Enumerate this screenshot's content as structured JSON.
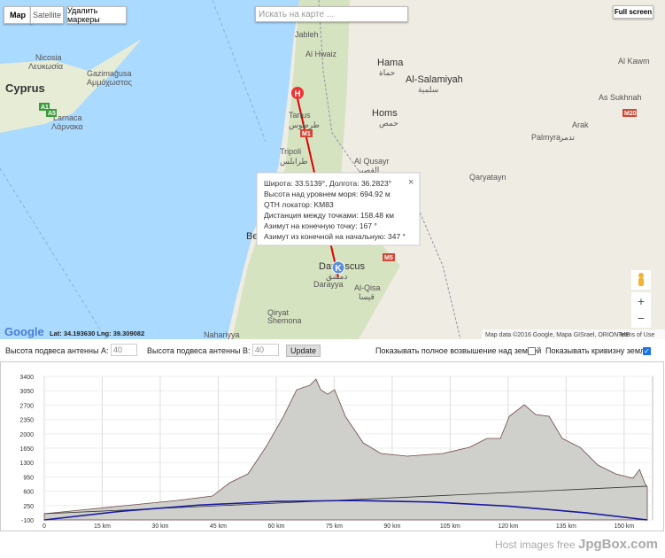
{
  "map": {
    "buttons": {
      "map": "Map",
      "satellite": "Satellite",
      "clear": "Удалить маркеры",
      "fullscreen": "Full screen",
      "zoom_in": "+",
      "zoom_out": "−"
    },
    "search_placeholder": "Искать на карте ...",
    "labels": [
      "Cyprus",
      "Nicosia",
      "Λευκωσία",
      "Gazimağusa",
      "Αμμόχωστος",
      "Larnaca",
      "Λάρνακα",
      "Jableh",
      "Al Hwaiz",
      "Tartus",
      "طرطوس",
      "Tripoli",
      "طرابلس",
      "Hama",
      "حماة",
      "Al-Salamiyah",
      "سلمية",
      "Homs",
      "حمص",
      "Al Qusayr",
      "القصير",
      "Palmyra",
      "تدمر",
      "Arak",
      "As Sukhnah",
      "Al Kawm",
      "Qaryatayn",
      "Damascus",
      "دمشق",
      "Darayya",
      "Al-Qisa",
      "قيسا",
      "Qiryat",
      "Shemona",
      "Nahariyya",
      "Be",
      "M1",
      "M5",
      "M20",
      "A1",
      "A5"
    ],
    "markers": [
      "H",
      "K"
    ],
    "popup": [
      "Широта: 33.5139°, Долгота: 36.2823°",
      "Высота над уровнем моря: 694.92 м",
      "QTH локатор: KM83",
      "Дистанция между точками: 158.48 км",
      "Азимут на конечную точку: 167 °",
      "Азимут из конечной на начальную: 347 °"
    ],
    "popup_close": "×",
    "google": "Google",
    "coords": "Lat: 34.193630 Lng: 39.309082",
    "attribution": "Map data ©2016 Google, Mapa GISrael, ORION-ME",
    "terms": "Terms of Use"
  },
  "form": {
    "antenna_a": "Высота подвеса антенны A:",
    "value_a": "40",
    "antenna_b": "Высота подвеса антенны B:",
    "value_b": "40",
    "update": "Update",
    "full_elevation": "Показывать полное возвышение над землёй",
    "full_elevation_checked": false,
    "curvature": "Показывать кривизну земли",
    "curvature_checked": true
  },
  "chart_data": {
    "type": "area",
    "grid": true,
    "xlim": [
      0,
      156
    ],
    "ylim": [
      -100,
      3400
    ],
    "yticks": [
      3400,
      3050,
      2700,
      2350,
      2000,
      1650,
      1300,
      950,
      600,
      250,
      -100
    ],
    "xticks": [
      0,
      {
        "value": 15,
        "label": "15 km"
      },
      {
        "value": 30,
        "label": "30 km"
      },
      {
        "value": 45,
        "label": "45 km"
      },
      {
        "value": 60,
        "label": "60 km"
      },
      {
        "value": 75,
        "label": "75 km"
      },
      {
        "value": 90,
        "label": "90 km"
      },
      {
        "value": 105,
        "label": "105 km"
      },
      {
        "value": 120,
        "label": "120 km"
      },
      {
        "value": 135,
        "label": "135 km"
      },
      {
        "value": 150,
        "label": "150 km"
      }
    ],
    "terrain": {
      "color": "#cfcfcb",
      "x": [
        0,
        11.4,
        22.9,
        34.4,
        43.5,
        48,
        52.7,
        57.3,
        61.9,
        65.3,
        68.7,
        70.3,
        71.5,
        73.3,
        75.1,
        77.9,
        82.5,
        87.1,
        93.9,
        103.1,
        110,
        114.5,
        118,
        120.3,
        124.2,
        127.1,
        130.6,
        134,
        138.6,
        143.2,
        147.8,
        152.3,
        154,
        155.3,
        156
      ],
      "values": [
        51,
        160,
        267,
        375,
        483,
        807,
        1023,
        1671,
        2427,
        3075,
        3183,
        3334,
        3075,
        2967,
        3075,
        2427,
        1779,
        1520,
        1455,
        1520,
        1671,
        1887,
        1887,
        2427,
        2708,
        2470,
        2427,
        1887,
        1671,
        1239,
        1023,
        915,
        1131,
        807,
        700
      ]
    },
    "line_of_sight": {
      "color": "#333333",
      "x": [
        0,
        156
      ],
      "values": [
        51,
        722
      ]
    },
    "curvature": {
      "color": "#1a1aa0",
      "x": [
        0,
        20,
        40,
        60,
        80,
        100,
        120,
        140,
        156
      ],
      "values": [
        -100,
        112,
        262,
        350,
        375,
        337,
        237,
        75,
        -100
      ]
    }
  },
  "footer": {
    "text": "Host images free",
    "brand": "JpgBox.com"
  }
}
